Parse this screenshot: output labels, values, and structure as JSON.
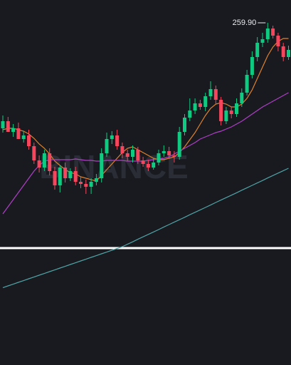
{
  "chart_data": {
    "type": "candlestick",
    "watermark": "BINANCE",
    "high_label": "259.90",
    "ylim": [
      235.9,
      261.5
    ],
    "up_color": "#0ecb81",
    "down_color": "#f6465d",
    "candles": {
      "open": [
        252.5,
        253.0,
        252.25,
        252.5,
        251.75,
        252.0,
        251.25,
        250.25,
        249.75,
        250.75,
        249.5,
        248.5,
        249.75,
        249.0,
        249.5,
        248.75,
        248.6,
        248.4,
        248.75,
        249.0,
        250.75,
        251.75,
        252.0,
        251.25,
        250.75,
        250.5,
        251.0,
        250.25,
        250.0,
        249.75,
        250.1,
        250.75,
        250.9,
        250.6,
        250.5,
        252.25,
        253.25,
        253.75,
        254.25,
        254.0,
        254.75,
        255.25,
        254.5,
        253.0,
        253.75,
        253.5,
        254.25,
        255.0,
        256.25,
        257.5,
        258.5,
        258.75,
        259.5,
        259.0,
        258.25,
        257.5
      ],
      "high": [
        253.4,
        253.3,
        252.8,
        252.9,
        252.3,
        252.4,
        251.5,
        250.6,
        251.0,
        251.1,
        249.8,
        249.9,
        250.1,
        249.7,
        249.8,
        249.1,
        248.9,
        249.0,
        249.3,
        251.1,
        252.2,
        252.3,
        252.4,
        251.5,
        251.0,
        251.3,
        251.2,
        250.5,
        250.3,
        250.4,
        251.0,
        251.3,
        251.2,
        250.9,
        252.6,
        253.5,
        254.6,
        254.6,
        254.5,
        255.0,
        255.8,
        255.5,
        254.7,
        254.0,
        254.0,
        254.6,
        255.3,
        256.6,
        257.9,
        258.9,
        259.2,
        259.9,
        259.7,
        259.2,
        258.5,
        258.3
      ],
      "low": [
        252.2,
        252.7,
        251.9,
        252.0,
        251.5,
        251.0,
        250.0,
        249.4,
        249.5,
        249.2,
        248.2,
        248.0,
        248.7,
        248.8,
        248.5,
        248.3,
        247.9,
        247.9,
        248.5,
        248.7,
        250.5,
        251.4,
        251.0,
        250.4,
        250.2,
        250.1,
        250.0,
        249.8,
        249.5,
        249.6,
        249.9,
        250.5,
        250.4,
        250.1,
        250.3,
        252.0,
        253.0,
        253.5,
        253.8,
        253.7,
        254.5,
        254.2,
        252.7,
        252.8,
        253.2,
        253.3,
        254.0,
        254.8,
        256.0,
        257.2,
        258.2,
        258.5,
        258.8,
        257.9,
        257.2,
        257.3
      ],
      "close": [
        253.0,
        252.25,
        252.5,
        251.75,
        252.0,
        251.25,
        250.25,
        249.75,
        250.75,
        249.5,
        248.5,
        249.75,
        249.0,
        249.5,
        248.75,
        248.6,
        248.4,
        248.75,
        249.0,
        250.75,
        251.75,
        252.0,
        251.25,
        250.75,
        250.5,
        251.0,
        250.25,
        250.0,
        249.75,
        250.1,
        250.75,
        250.9,
        250.6,
        250.5,
        252.25,
        253.25,
        253.75,
        254.25,
        254.0,
        254.75,
        255.25,
        254.5,
        253.0,
        253.75,
        253.5,
        254.25,
        255.0,
        256.25,
        257.5,
        258.5,
        258.75,
        259.5,
        259.0,
        258.25,
        257.5,
        258.0
      ]
    },
    "lines": [
      {
        "color": "#e0822c",
        "values": [
          252.4,
          252.5,
          252.5,
          252.4,
          252.3,
          252.1,
          251.8,
          251.4,
          251.1,
          250.7,
          250.2,
          249.9,
          249.6,
          249.4,
          249.3,
          249.1,
          249.0,
          248.9,
          248.8,
          249.2,
          249.6,
          250.0,
          250.4,
          250.8,
          251.1,
          251.2,
          251.0,
          250.8,
          250.6,
          250.4,
          250.3,
          250.3,
          250.4,
          250.5,
          250.8,
          251.2,
          251.7,
          252.2,
          252.8,
          253.4,
          253.9,
          254.2,
          254.3,
          254.2,
          254.0,
          254.0,
          254.2,
          254.6,
          255.2,
          256.0,
          256.8,
          257.6,
          258.2,
          258.6,
          258.8,
          258.8
        ]
      },
      {
        "color": "#b03fc7",
        "values": [
          246.5,
          247.0,
          247.5,
          248.0,
          248.5,
          249.0,
          249.5,
          249.9,
          250.2,
          250.3,
          250.3,
          250.3,
          250.3,
          250.3,
          250.35,
          250.3,
          250.25,
          250.25,
          250.2,
          250.2,
          250.25,
          250.25,
          250.25,
          250.25,
          250.2,
          250.2,
          250.2,
          250.2,
          250.25,
          250.3,
          250.35,
          250.4,
          250.5,
          250.7,
          250.9,
          251.1,
          251.3,
          251.5,
          251.75,
          251.9,
          252.05,
          252.2,
          252.3,
          252.45,
          252.6,
          252.8,
          253.0,
          253.25,
          253.5,
          253.75,
          254.0,
          254.2,
          254.4,
          254.6,
          254.8,
          255.0
        ]
      },
      {
        "color": "#4fa3a5",
        "values": [
          241.32,
          241.45,
          241.57,
          241.7,
          241.82,
          241.95,
          242.07,
          242.2,
          242.32,
          242.45,
          242.57,
          242.7,
          242.82,
          242.95,
          243.07,
          243.2,
          243.32,
          243.45,
          243.57,
          243.7,
          243.82,
          243.95,
          244.07,
          244.2,
          244.37,
          244.54,
          244.72,
          244.89,
          245.06,
          245.23,
          245.4,
          245.58,
          245.75,
          245.92,
          246.09,
          246.26,
          246.44,
          246.61,
          246.78,
          246.95,
          247.12,
          247.3,
          247.47,
          247.64,
          247.81,
          247.98,
          248.16,
          248.33,
          248.5,
          248.67,
          248.84,
          249.02,
          249.19,
          249.36,
          249.53,
          249.7
        ]
      }
    ]
  }
}
